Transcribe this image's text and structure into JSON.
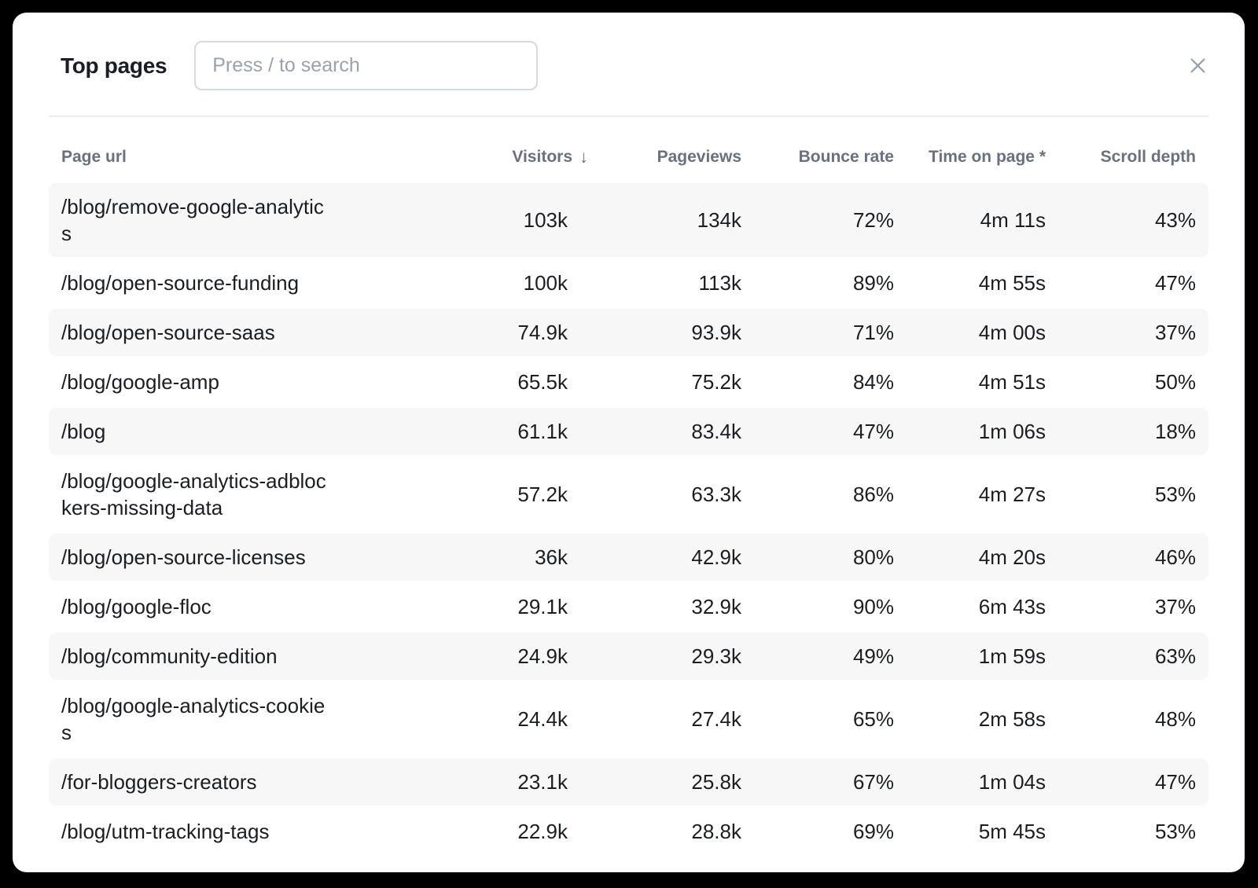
{
  "backdrop_color": "#000000",
  "modal": {
    "title": "Top pages",
    "search": {
      "placeholder": "Press / to search",
      "value": ""
    }
  },
  "table": {
    "sort_icon": "↓",
    "sorted_by": "Visitors",
    "sort_direction": "descending",
    "columns": [
      {
        "label": "Page url"
      },
      {
        "label": "Visitors",
        "sorted": true
      },
      {
        "label": "Pageviews"
      },
      {
        "label": "Bounce rate"
      },
      {
        "label": "Time on page *"
      },
      {
        "label": "Scroll depth"
      }
    ],
    "rows": [
      {
        "url": "/blog/remove-google-analytics",
        "visitors": "103k",
        "pageviews": "134k",
        "bounce_rate": "72%",
        "time_on_page": "4m 11s",
        "scroll_depth": "43%"
      },
      {
        "url": "/blog/open-source-funding",
        "visitors": "100k",
        "pageviews": "113k",
        "bounce_rate": "89%",
        "time_on_page": "4m 55s",
        "scroll_depth": "47%"
      },
      {
        "url": "/blog/open-source-saas",
        "visitors": "74.9k",
        "pageviews": "93.9k",
        "bounce_rate": "71%",
        "time_on_page": "4m 00s",
        "scroll_depth": "37%"
      },
      {
        "url": "/blog/google-amp",
        "visitors": "65.5k",
        "pageviews": "75.2k",
        "bounce_rate": "84%",
        "time_on_page": "4m 51s",
        "scroll_depth": "50%"
      },
      {
        "url": "/blog",
        "visitors": "61.1k",
        "pageviews": "83.4k",
        "bounce_rate": "47%",
        "time_on_page": "1m 06s",
        "scroll_depth": "18%"
      },
      {
        "url": "/blog/google-analytics-adblockers-missing-data",
        "visitors": "57.2k",
        "pageviews": "63.3k",
        "bounce_rate": "86%",
        "time_on_page": "4m 27s",
        "scroll_depth": "53%"
      },
      {
        "url": "/blog/open-source-licenses",
        "visitors": "36k",
        "pageviews": "42.9k",
        "bounce_rate": "80%",
        "time_on_page": "4m 20s",
        "scroll_depth": "46%"
      },
      {
        "url": "/blog/google-floc",
        "visitors": "29.1k",
        "pageviews": "32.9k",
        "bounce_rate": "90%",
        "time_on_page": "6m 43s",
        "scroll_depth": "37%"
      },
      {
        "url": "/blog/community-edition",
        "visitors": "24.9k",
        "pageviews": "29.3k",
        "bounce_rate": "49%",
        "time_on_page": "1m 59s",
        "scroll_depth": "63%"
      },
      {
        "url": "/blog/google-analytics-cookies",
        "visitors": "24.4k",
        "pageviews": "27.4k",
        "bounce_rate": "65%",
        "time_on_page": "2m 58s",
        "scroll_depth": "48%"
      },
      {
        "url": "/for-bloggers-creators",
        "visitors": "23.1k",
        "pageviews": "25.8k",
        "bounce_rate": "67%",
        "time_on_page": "1m 04s",
        "scroll_depth": "47%"
      },
      {
        "url": "/blog/utm-tracking-tags",
        "visitors": "22.9k",
        "pageviews": "28.8k",
        "bounce_rate": "69%",
        "time_on_page": "5m 45s",
        "scroll_depth": "53%"
      }
    ]
  },
  "colors": {
    "zebra_row": "#f7f7f7",
    "header_text": "#697080",
    "cell_text": "#1b1d21",
    "divider": "#e9ebee",
    "close_icon": "#98a0ab"
  }
}
